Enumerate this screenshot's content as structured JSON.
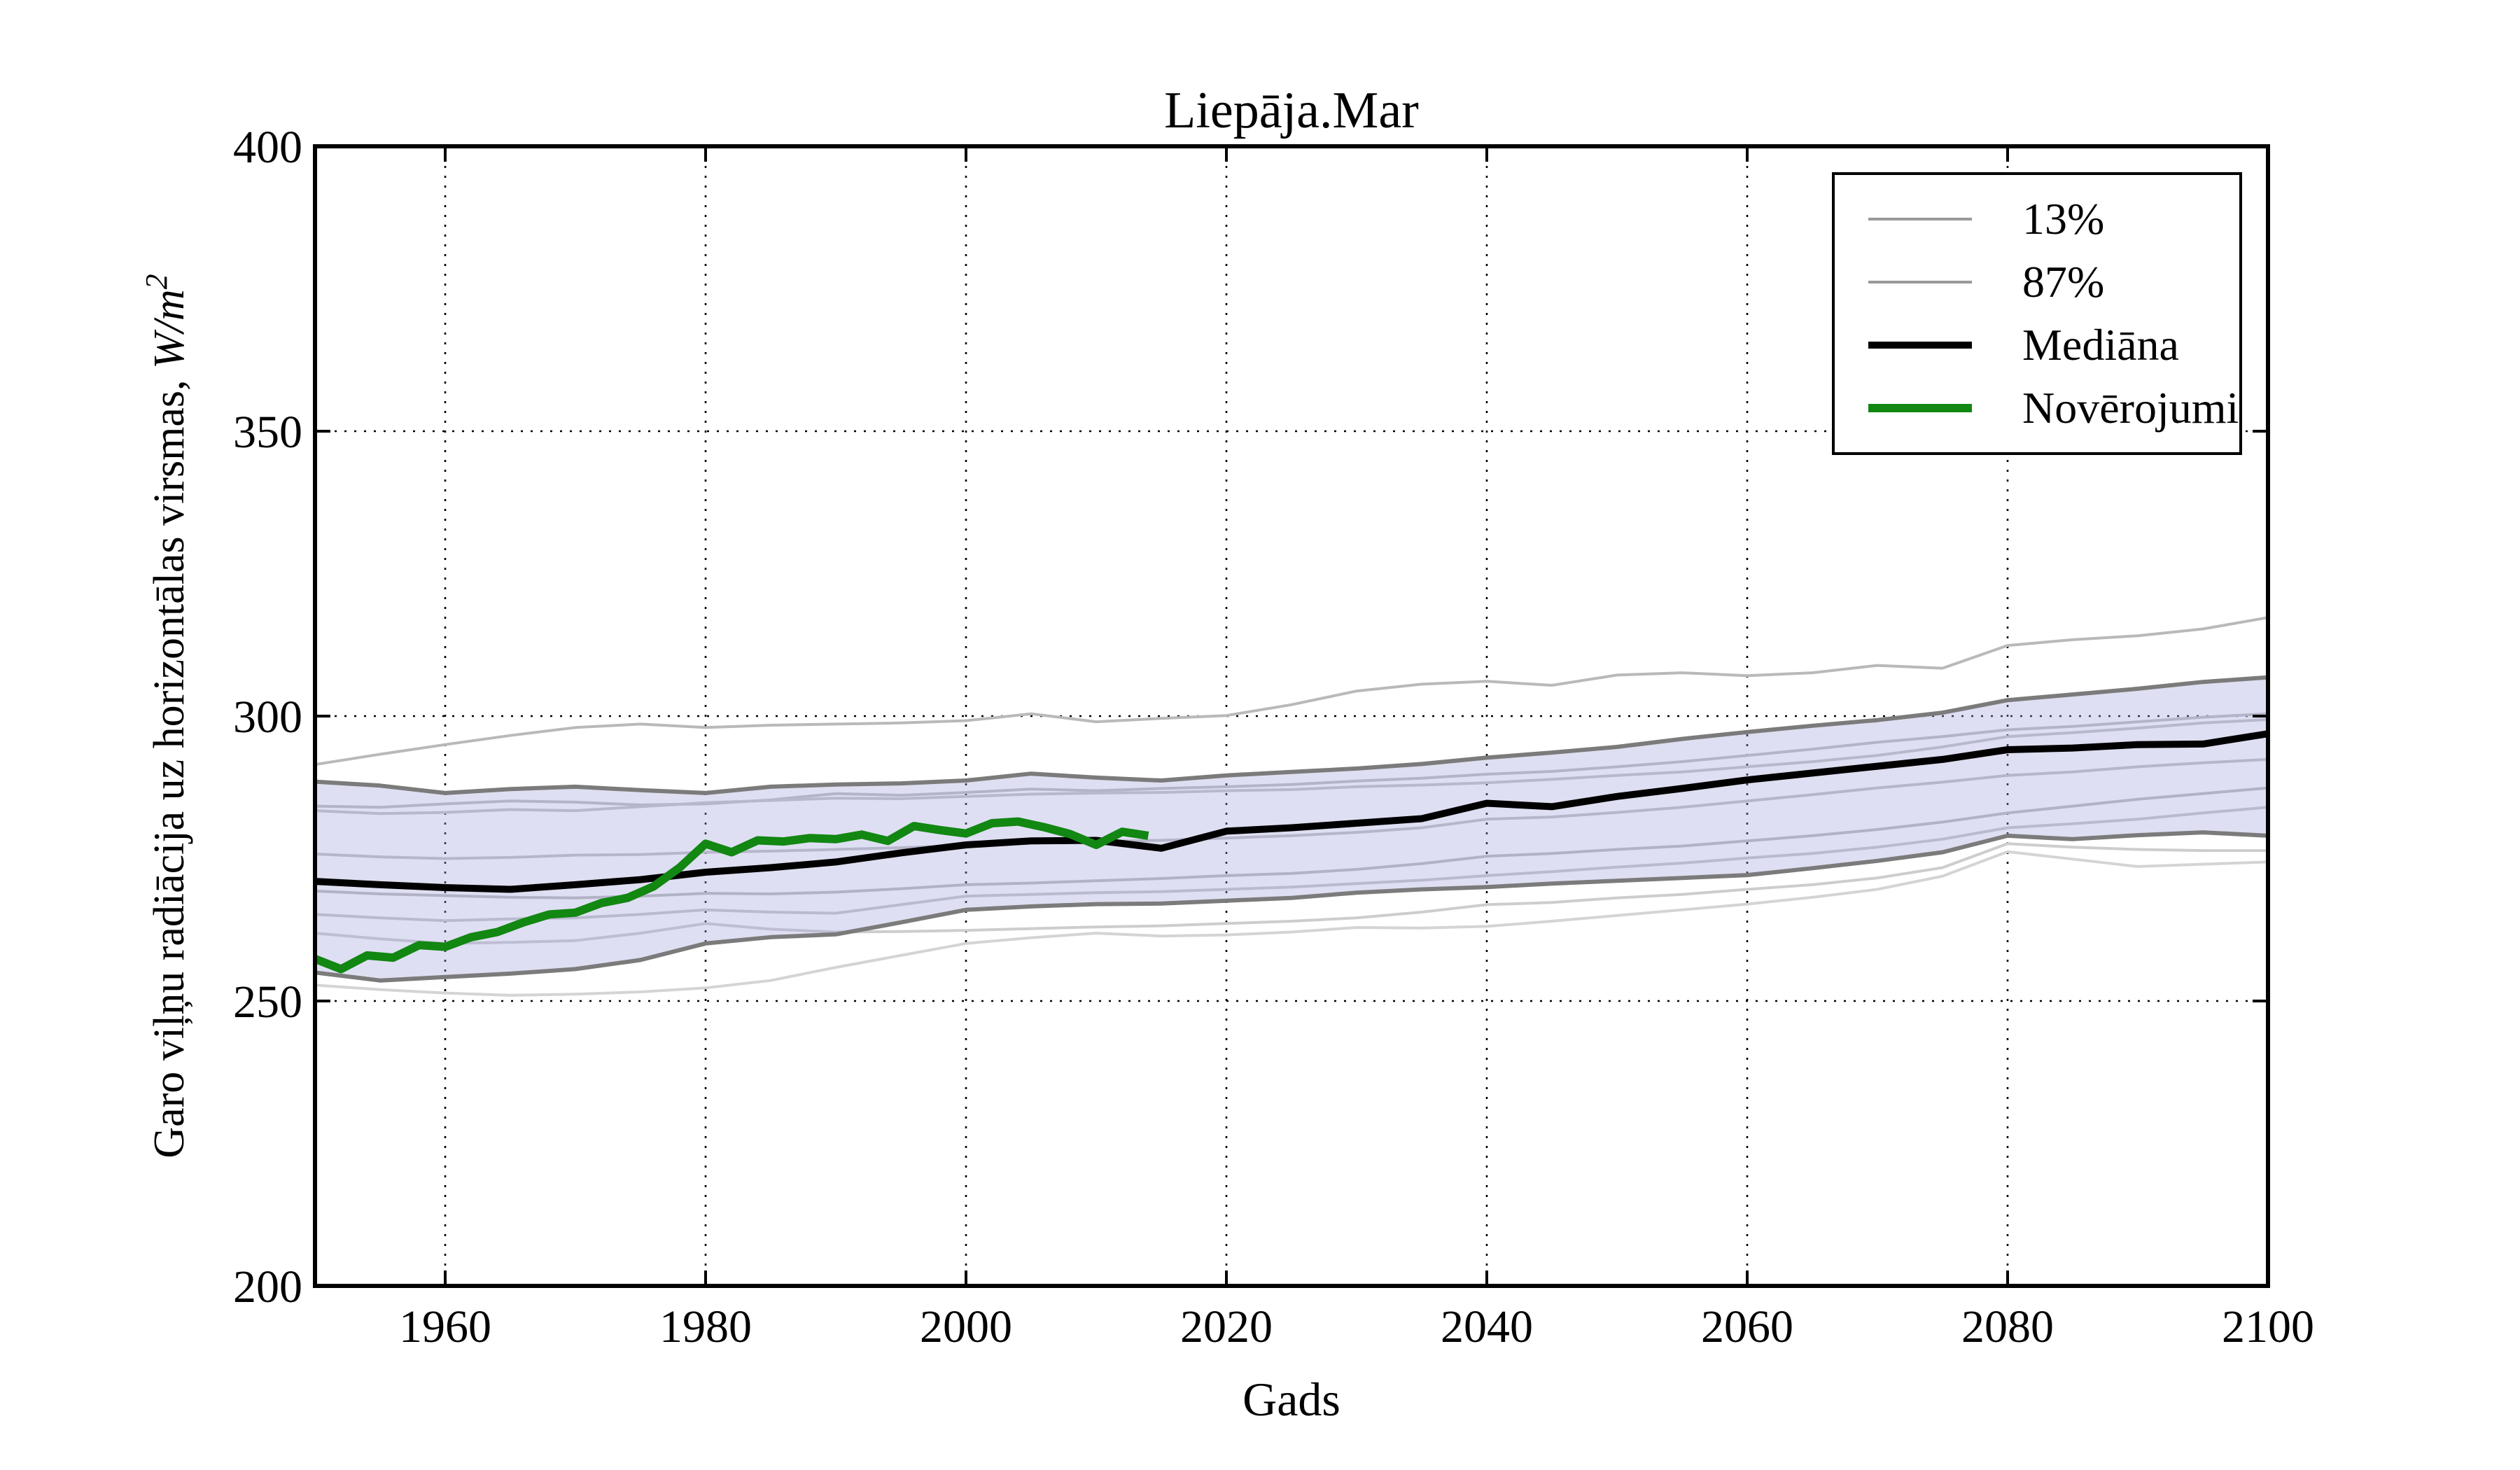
{
  "title": "Liepāja.Mar",
  "xlabel": "Gads",
  "ylabel": {
    "prefix": "Garo viļņu radiācija uz horizontālas virsmas, ",
    "math": "W/m",
    "sup": "2"
  },
  "legend": {
    "items": [
      {
        "label": "13%",
        "color": "#999999",
        "line_width": 4
      },
      {
        "label": "87%",
        "color": "#999999",
        "line_width": 4
      },
      {
        "label": "Mediāna",
        "color": "#000000",
        "line_width": 10
      },
      {
        "label": "Novērojumi",
        "color": "#128712",
        "line_width": 12
      }
    ]
  },
  "colors": {
    "band_fill": "rgba(163,163,221,0.35)",
    "band_edge": "#7b7b7b",
    "median": "#000000",
    "observations": "#128712",
    "frame": "#000000",
    "grid": "#000000"
  },
  "chart_data": {
    "type": "line",
    "title": "Liepāja.Mar",
    "xlabel": "Gads",
    "ylabel": "Garo viļņu radiācija uz horizontālas virsmas, W/m2",
    "xlim": [
      1950,
      2100
    ],
    "ylim": [
      200,
      400
    ],
    "xticks": [
      1960,
      1980,
      2000,
      2020,
      2040,
      2060,
      2080,
      2100
    ],
    "yticks": [
      200,
      250,
      300,
      350,
      400
    ],
    "grid_x": [
      1960,
      1980,
      2000,
      2020,
      2040,
      2060,
      2080
    ],
    "grid_y": [
      250,
      300,
      350
    ],
    "grid": true,
    "legend_position": "upper right",
    "band": {
      "upper": "p87",
      "lower": "p13"
    },
    "series": [
      {
        "name": "run-1",
        "role": "run",
        "color": "#b9b9b9",
        "width": 4,
        "start": 1950,
        "step": 5,
        "values": [
          291.5,
          293.3,
          295.0,
          296.6,
          298.0,
          298.6,
          298.0,
          298.4,
          298.6,
          298.8,
          299.2,
          300.4,
          299.0,
          299.6,
          300.1,
          302.0,
          304.4,
          305.6,
          306.1,
          305.4,
          307.2,
          307.6,
          307.1,
          307.6,
          308.9,
          308.4,
          312.4,
          313.4,
          314.1,
          315.3,
          317.3
        ]
      },
      {
        "name": "run-2",
        "role": "run",
        "color": "#bdbdbd",
        "width": 4,
        "start": 1950,
        "step": 5,
        "values": [
          284.2,
          284.0,
          284.6,
          285.1,
          284.9,
          284.4,
          284.6,
          285.3,
          286.4,
          286.1,
          286.6,
          287.2,
          286.9,
          287.3,
          287.6,
          288.0,
          288.6,
          289.1,
          289.8,
          290.3,
          291.1,
          292.0,
          293.1,
          294.2,
          295.4,
          296.4,
          297.6,
          298.2,
          299.0,
          299.8,
          300.4
        ]
      },
      {
        "name": "run-3",
        "role": "run",
        "color": "#c4c4c4",
        "width": 4,
        "start": 1950,
        "step": 5,
        "values": [
          283.4,
          282.9,
          283.1,
          283.6,
          283.4,
          284.1,
          284.8,
          285.2,
          285.6,
          285.5,
          285.9,
          286.3,
          286.5,
          286.6,
          286.9,
          287.1,
          287.6,
          287.9,
          288.3,
          288.9,
          289.6,
          290.2,
          291.1,
          292.0,
          293.1,
          294.6,
          296.4,
          297.1,
          297.9,
          298.8,
          299.4
        ]
      },
      {
        "name": "run-4",
        "role": "run",
        "color": "#c0c0c0",
        "width": 4,
        "start": 1950,
        "step": 5,
        "values": [
          275.8,
          275.3,
          275.0,
          275.2,
          275.6,
          275.7,
          276.1,
          276.3,
          276.6,
          276.9,
          277.3,
          277.7,
          278.0,
          278.2,
          278.6,
          279.0,
          279.6,
          280.4,
          281.9,
          282.3,
          283.1,
          284.0,
          285.1,
          286.2,
          287.4,
          288.4,
          289.6,
          290.2,
          291.1,
          291.8,
          292.4
        ]
      },
      {
        "name": "run-5",
        "role": "run",
        "color": "#bababa",
        "width": 4,
        "start": 1950,
        "step": 5,
        "values": [
          269.3,
          268.8,
          268.5,
          268.2,
          268.1,
          268.4,
          268.9,
          268.8,
          269.1,
          269.7,
          270.4,
          270.7,
          271.1,
          271.5,
          272.0,
          272.4,
          273.1,
          274.1,
          275.4,
          275.9,
          276.6,
          277.2,
          278.1,
          279.0,
          280.1,
          281.4,
          283.0,
          284.2,
          285.4,
          286.4,
          287.4
        ]
      },
      {
        "name": "run-6",
        "role": "run",
        "color": "#c6c6c6",
        "width": 4,
        "start": 1950,
        "step": 5,
        "values": [
          265.2,
          264.6,
          264.1,
          264.4,
          264.6,
          265.2,
          266.0,
          265.6,
          265.4,
          266.9,
          268.4,
          268.7,
          269.0,
          269.2,
          269.6,
          270.0,
          270.6,
          271.2,
          272.0,
          272.7,
          273.5,
          274.2,
          275.1,
          275.9,
          277.0,
          278.4,
          280.4,
          281.1,
          281.9,
          283.0,
          284.0
        ]
      },
      {
        "name": "run-7",
        "role": "run",
        "color": "#cdcdcd",
        "width": 4,
        "start": 1950,
        "step": 5,
        "values": [
          261.9,
          260.9,
          260.1,
          260.3,
          260.6,
          261.9,
          263.6,
          262.6,
          262.1,
          262.2,
          262.4,
          262.7,
          263.0,
          263.2,
          263.6,
          264.0,
          264.6,
          265.6,
          266.9,
          267.3,
          268.1,
          268.7,
          269.6,
          270.4,
          271.6,
          273.4,
          277.6,
          277.0,
          276.6,
          276.4,
          276.4
        ]
      },
      {
        "name": "run-8",
        "role": "run",
        "color": "#d4d4d4",
        "width": 4,
        "start": 1950,
        "step": 5,
        "values": [
          252.8,
          252.0,
          251.4,
          251.0,
          251.2,
          251.6,
          252.3,
          253.6,
          255.9,
          258.0,
          260.1,
          261.1,
          261.9,
          261.4,
          261.6,
          262.1,
          262.9,
          262.8,
          263.1,
          264.0,
          265.0,
          266.0,
          267.0,
          268.2,
          269.6,
          271.9,
          276.2,
          274.9,
          273.6,
          274.0,
          274.4
        ]
      },
      {
        "name": "p87",
        "role": "band-upper",
        "label": "87%",
        "color": "#7b7b7b",
        "width": 5,
        "start": 1950,
        "step": 5,
        "values": [
          288.5,
          287.8,
          286.5,
          287.2,
          287.6,
          287.0,
          286.5,
          287.6,
          288.0,
          288.2,
          288.7,
          289.9,
          289.2,
          288.7,
          289.6,
          290.2,
          290.8,
          291.6,
          292.7,
          293.6,
          294.6,
          296.0,
          297.2,
          298.3,
          299.3,
          300.6,
          302.8,
          303.8,
          304.8,
          306.0,
          306.8
        ]
      },
      {
        "name": "p13",
        "role": "band-lower",
        "label": "13%",
        "color": "#7b7b7b",
        "width": 5,
        "start": 1950,
        "step": 5,
        "values": [
          255.0,
          253.6,
          254.2,
          254.8,
          255.6,
          257.2,
          260.1,
          261.2,
          261.7,
          263.8,
          266.0,
          266.6,
          267.0,
          267.1,
          267.6,
          268.1,
          269.0,
          269.6,
          270.0,
          270.6,
          271.1,
          271.6,
          272.1,
          273.3,
          274.6,
          276.1,
          279.0,
          278.4,
          279.1,
          279.6,
          279.0
        ]
      },
      {
        "name": "mediana",
        "role": "median",
        "label": "Mediāna",
        "color": "#000000",
        "width": 10,
        "start": 1950,
        "step": 5,
        "values": [
          271.0,
          270.4,
          269.9,
          269.6,
          270.4,
          271.3,
          272.6,
          273.4,
          274.4,
          276.0,
          277.4,
          278.1,
          278.2,
          276.8,
          279.8,
          280.4,
          281.2,
          282.0,
          284.7,
          284.1,
          285.9,
          287.3,
          288.8,
          290.0,
          291.2,
          292.4,
          294.1,
          294.4,
          295.0,
          295.1,
          296.9
        ]
      },
      {
        "name": "noverojumi",
        "role": "observations",
        "label": "Novērojumi",
        "color": "#128712",
        "width": 12,
        "start": 1950,
        "step": 2,
        "values": [
          257.4,
          255.6,
          258.0,
          257.6,
          259.8,
          259.5,
          261.2,
          262.1,
          263.8,
          265.2,
          265.5,
          267.2,
          268.1,
          270.1,
          273.4,
          277.6,
          276.1,
          278.2,
          278.0,
          278.6,
          278.4,
          279.2,
          278.1,
          280.7,
          280.0,
          279.4,
          281.2,
          281.5,
          280.5,
          279.3,
          277.4,
          279.7,
          279.0
        ]
      }
    ]
  }
}
